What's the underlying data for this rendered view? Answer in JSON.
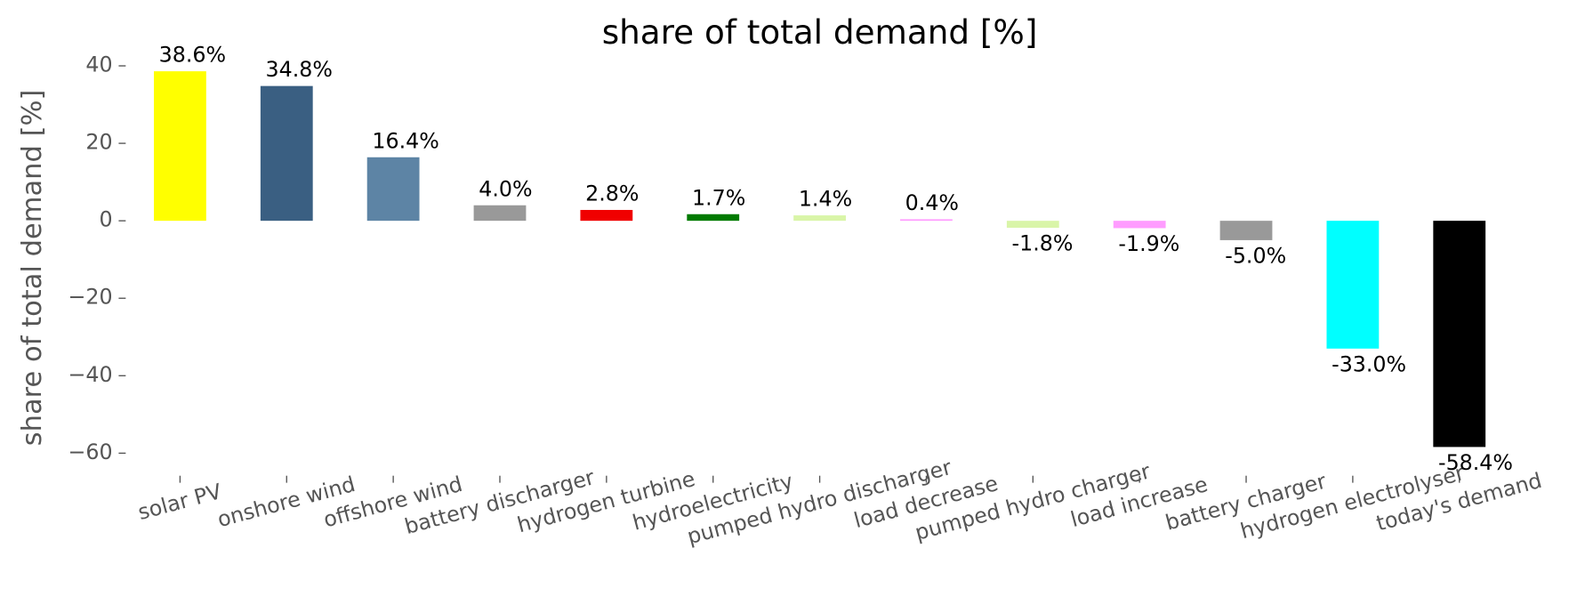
{
  "chart_data": {
    "type": "bar",
    "title": "share of total demand [%]",
    "ylabel": "share of total demand [%]",
    "categories": [
      "solar PV",
      "onshore wind",
      "offshore wind",
      "battery discharger",
      "hydrogen turbine",
      "hydroelectricity",
      "pumped hydro discharger",
      "load decrease",
      "pumped hydro charger",
      "load increase",
      "battery charger",
      "hydrogen electrolyser",
      "today's demand"
    ],
    "values": [
      38.6,
      34.8,
      16.4,
      4.0,
      2.8,
      1.7,
      1.4,
      0.4,
      -1.8,
      -1.9,
      -5.0,
      -33.0,
      -58.4
    ],
    "value_labels": [
      "38.6%",
      "34.8%",
      "16.4%",
      "4.0%",
      "2.8%",
      "1.7%",
      "1.4%",
      "0.4%",
      "-1.8%",
      "-1.9%",
      "-5.0%",
      "-33.0%",
      "-58.4%"
    ],
    "colors": [
      "#ffff00",
      "#3a5f82",
      "#5d84a5",
      "#999999",
      "#f00000",
      "#007a00",
      "#d9f5a8",
      "#ff9cff",
      "#d9f5a8",
      "#ff9cff",
      "#999999",
      "#00ffff",
      "#000000"
    ],
    "ylim": [
      -64,
      42
    ],
    "yticks": [
      {
        "value": -60,
        "label": "−60"
      },
      {
        "value": -40,
        "label": "−40"
      },
      {
        "value": -20,
        "label": "−20"
      },
      0,
      20,
      40
    ],
    "grid": false
  }
}
